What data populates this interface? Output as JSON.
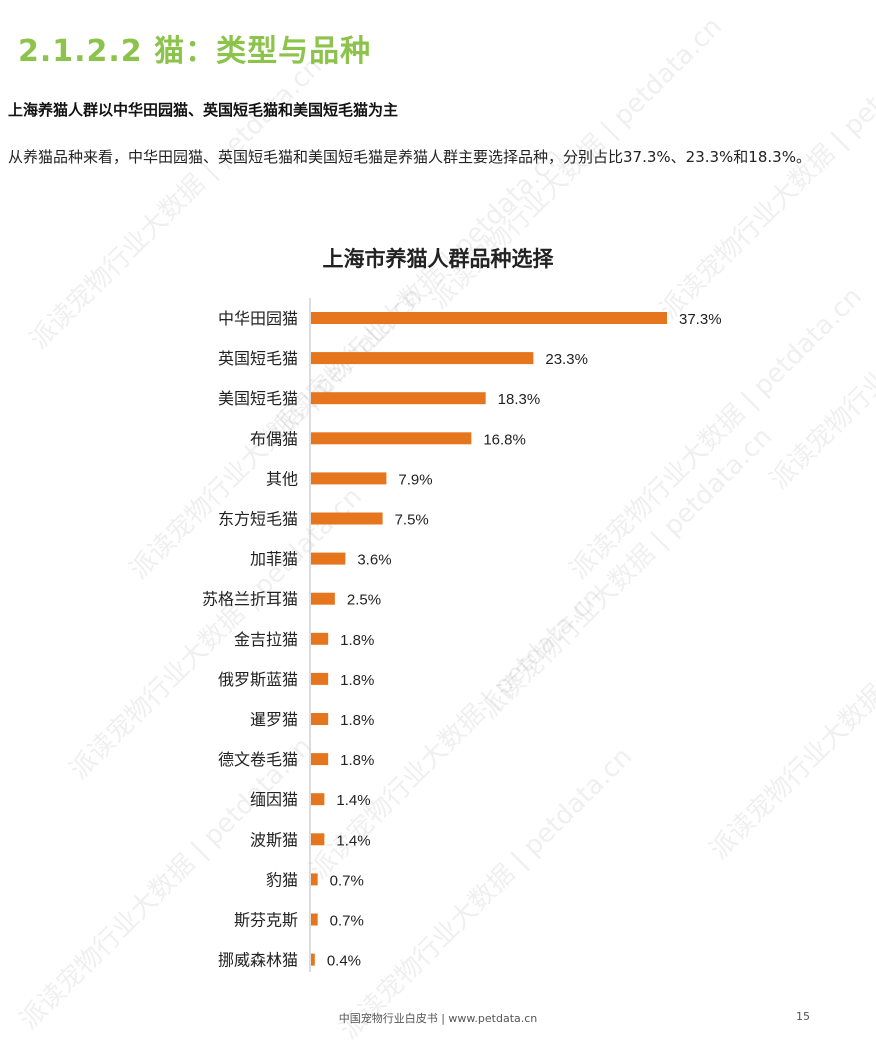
{
  "section_title": "2.1.2.2 猫：类型与品种",
  "subheading": "上海养猫人群以中华田园猫、英国短毛猫和美国短毛猫为主",
  "body_text": "从养猫品种来看，中华田园猫、英国短毛猫和美国短毛猫是养猫人群主要选择品种，分别占比37.3%、23.3%和18.3%。",
  "watermark_text": "派读宠物行业大数据 | petdata.cn",
  "footer_text": "中国宠物行业白皮书 | www.petdata.cn",
  "page_number": "15",
  "chart_data": {
    "type": "bar",
    "orientation": "horizontal",
    "title": "上海市养猫人群品种选择",
    "categories": [
      "中华田园猫",
      "英国短毛猫",
      "美国短毛猫",
      "布偶猫",
      "其他",
      "东方短毛猫",
      "加菲猫",
      "苏格兰折耳猫",
      "金吉拉猫",
      "俄罗斯蓝猫",
      "暹罗猫",
      "德文卷毛猫",
      "缅因猫",
      "波斯猫",
      "豹猫",
      "斯芬克斯",
      "挪威森林猫"
    ],
    "values": [
      37.3,
      23.3,
      18.3,
      16.8,
      7.9,
      7.5,
      3.6,
      2.5,
      1.8,
      1.8,
      1.8,
      1.8,
      1.4,
      1.4,
      0.7,
      0.7,
      0.4
    ],
    "value_labels": [
      "37.3%",
      "23.3%",
      "18.3%",
      "16.8%",
      "7.9%",
      "7.5%",
      "3.6%",
      "2.5%",
      "1.8%",
      "1.8%",
      "1.8%",
      "1.8%",
      "1.4%",
      "1.4%",
      "0.7%",
      "0.7%",
      "0.4%"
    ],
    "xlim": [
      0,
      37.3
    ],
    "bar_color": "#e6761e",
    "grid": false,
    "legend": false
  },
  "colors": {
    "title_green": "#8cc34b",
    "axis": "#bbbbbb"
  }
}
